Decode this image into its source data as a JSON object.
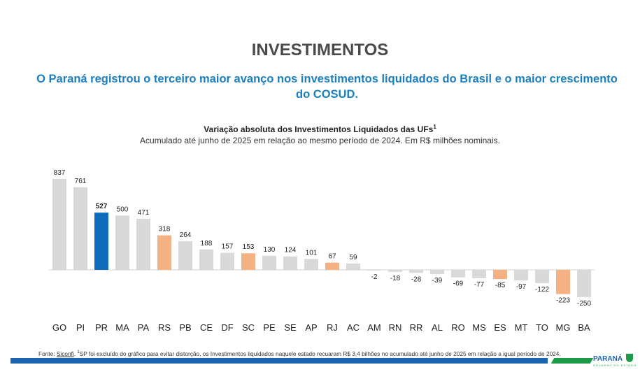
{
  "header": {
    "title": "INVESTIMENTOS",
    "subtitle": "O Paraná registrou o terceiro maior avanço nos investimentos liquidados do Brasil e o maior crescimento do COSUD."
  },
  "chart_data": {
    "type": "bar",
    "title": "Variação absoluta dos Investimentos Liquidados das UFs",
    "title_superscript": "1",
    "subtitle": "Acumulado até junho de 2025 em relação ao mesmo período de 2024. Em R$ milhões nominais.",
    "categories": [
      "GO",
      "PI",
      "PR",
      "MA",
      "PA",
      "RS",
      "PB",
      "CE",
      "DF",
      "SC",
      "PE",
      "SE",
      "AP",
      "RJ",
      "AC",
      "AM",
      "RN",
      "RR",
      "AL",
      "RO",
      "MS",
      "ES",
      "MT",
      "TO",
      "MG",
      "BA"
    ],
    "values": [
      837,
      761,
      527,
      500,
      471,
      318,
      264,
      188,
      157,
      153,
      130,
      124,
      101,
      67,
      59,
      -2,
      -18,
      -28,
      -39,
      -69,
      -77,
      -85,
      -97,
      -122,
      -223,
      -250
    ],
    "highlight": {
      "PR": "#0f6cbd",
      "RS": "#f4b183",
      "SC": "#f4b183",
      "RJ": "#f4b183",
      "ES": "#f4b183",
      "MG": "#f4b183"
    },
    "bold_label": "PR",
    "default_color": "#d9d9d9",
    "grid": false,
    "xlabel": "",
    "ylabel": ""
  },
  "footer": {
    "source_prefix": "Fonte: ",
    "source_link": "Siconfi",
    "note_marker": "1",
    "note": "SP foi excluído do gráfico para evitar distorção, os Investimentos liquidados naquele estado recuaram R$ 3,4 bilhões no acumulado até junho de 2025 em relação a igual período de 2024.",
    "logo": "PARANÁ",
    "logo_sub": "GOVERNO DO ESTADO"
  },
  "colors": {
    "title": "#4a4a4a",
    "subtitle": "#1a7fc0",
    "blue": "#1d63b0",
    "green": "#1d9a4a"
  }
}
